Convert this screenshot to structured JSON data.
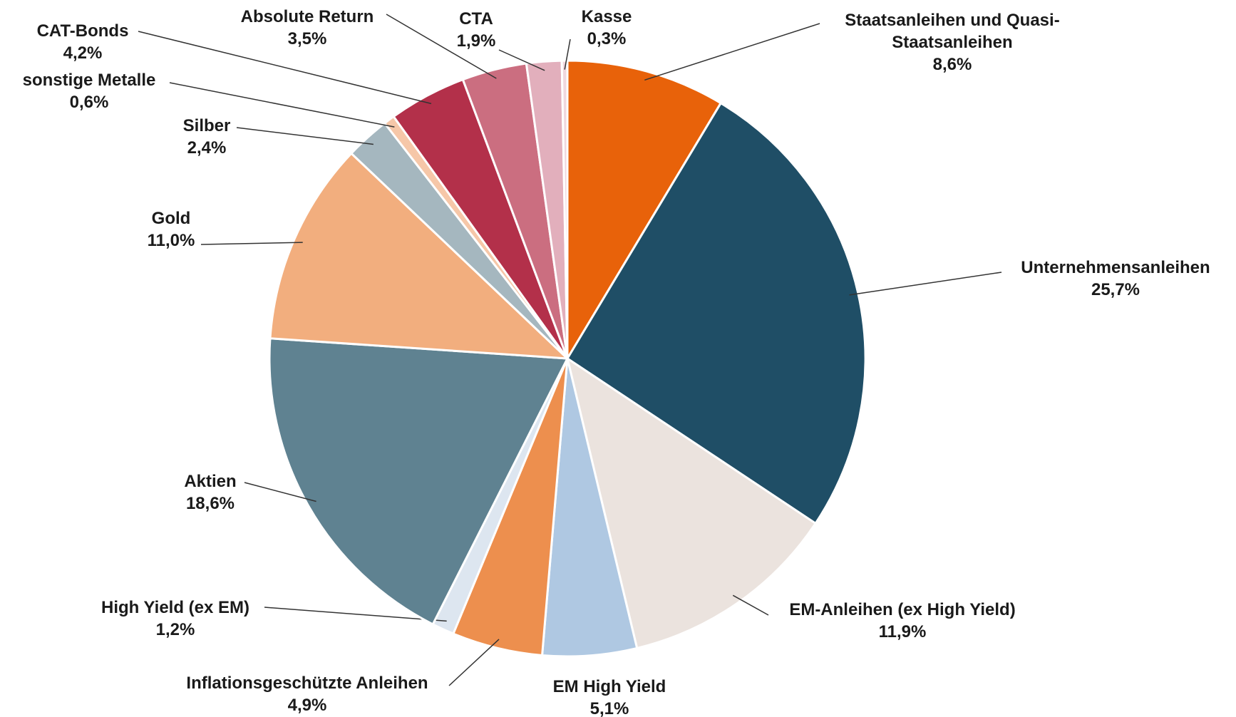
{
  "chart_data": {
    "type": "pie",
    "categories": [
      "Staatsanleihen und Quasi-Staatsanleihen",
      "Unternehmensanleihen",
      "EM-Anleihen (ex High Yield)",
      "EM High Yield",
      "Inflationsgeschützte Anleihen",
      "High Yield (ex EM)",
      "Aktien",
      "Gold",
      "Silber",
      "sonstige Metalle",
      "CAT-Bonds",
      "Absolute Return",
      "CTA",
      "Kasse"
    ],
    "values": [
      8.6,
      25.7,
      11.9,
      5.1,
      4.9,
      1.2,
      18.6,
      11.0,
      2.4,
      0.6,
      4.2,
      3.5,
      1.9,
      0.3
    ],
    "value_labels": [
      "8,6%",
      "25,7%",
      "11,9%",
      "5,1%",
      "4,9%",
      "1,2%",
      "18,6%",
      "11,0%",
      "2,4%",
      "0,6%",
      "4,2%",
      "3,5%",
      "1,9%",
      "0,3%"
    ],
    "colors": [
      "#E8620A",
      "#1F4E66",
      "#EBE3DE",
      "#AFC8E2",
      "#ED8F4E",
      "#DDE6F0",
      "#5F8291",
      "#F2AE7E",
      "#A5B7BF",
      "#F6C7A8",
      "#B3304A",
      "#CB6E80",
      "#E2AFBC",
      "#F0D7DE"
    ]
  }
}
